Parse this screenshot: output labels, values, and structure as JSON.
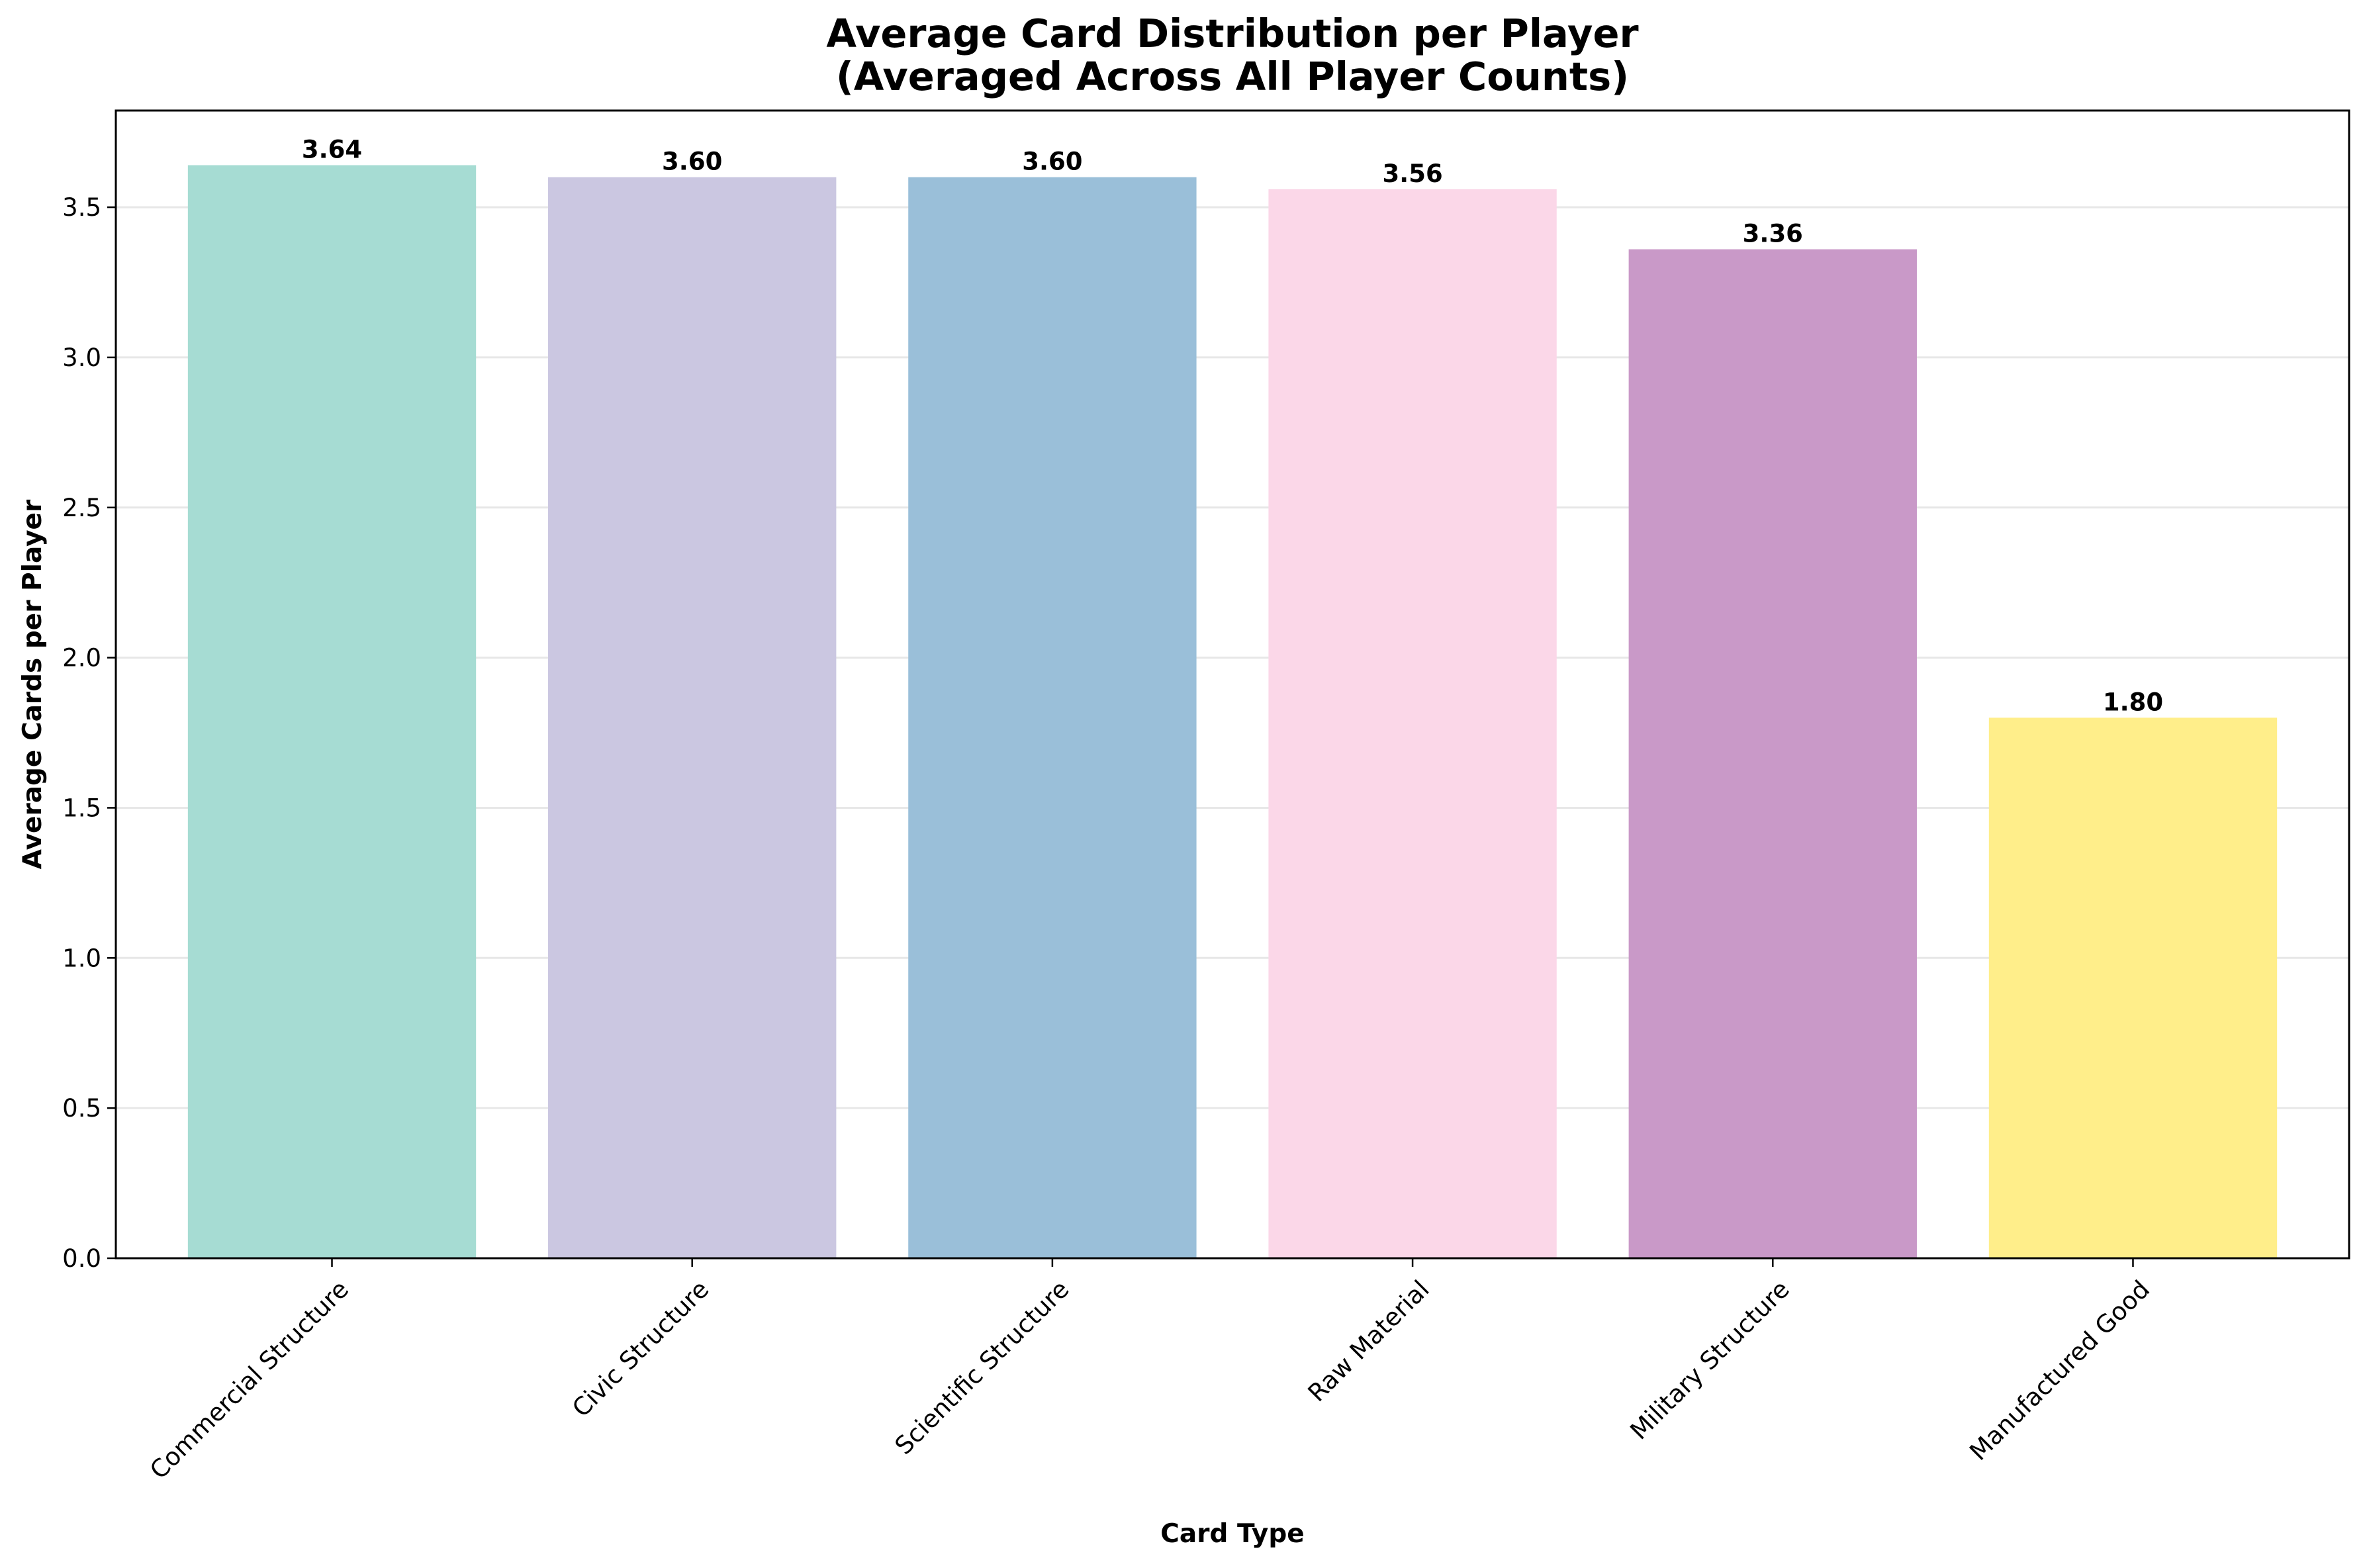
{
  "chart_data": {
    "type": "bar",
    "title": "Average Card Distribution per Player",
    "subtitle": "(Averaged Across All Player Counts)",
    "xlabel": "Card Type",
    "ylabel": "Average Cards per Player",
    "categories": [
      "Commercial Structure",
      "Civic Structure",
      "Scientific Structure",
      "Raw Material",
      "Military Structure",
      "Manufactured Good"
    ],
    "values": [
      3.64,
      3.6,
      3.6,
      3.56,
      3.36,
      1.8
    ],
    "data_labels": [
      "3.64",
      "3.60",
      "3.60",
      "3.56",
      "3.36",
      "1.80"
    ],
    "colors": [
      "#a6dcd3",
      "#cbc7e1",
      "#9abfd9",
      "#fbd7e8",
      "#c999c8",
      "#ffee8a"
    ],
    "ylim": [
      0,
      3.822
    ],
    "yticks": [
      0.0,
      0.5,
      1.0,
      1.5,
      2.0,
      2.5,
      3.0,
      3.5
    ],
    "ytick_labels": [
      "0.0",
      "0.5",
      "1.0",
      "1.5",
      "2.0",
      "2.5",
      "3.0",
      "3.5"
    ],
    "grid": "y-axis only",
    "legend": "none"
  }
}
